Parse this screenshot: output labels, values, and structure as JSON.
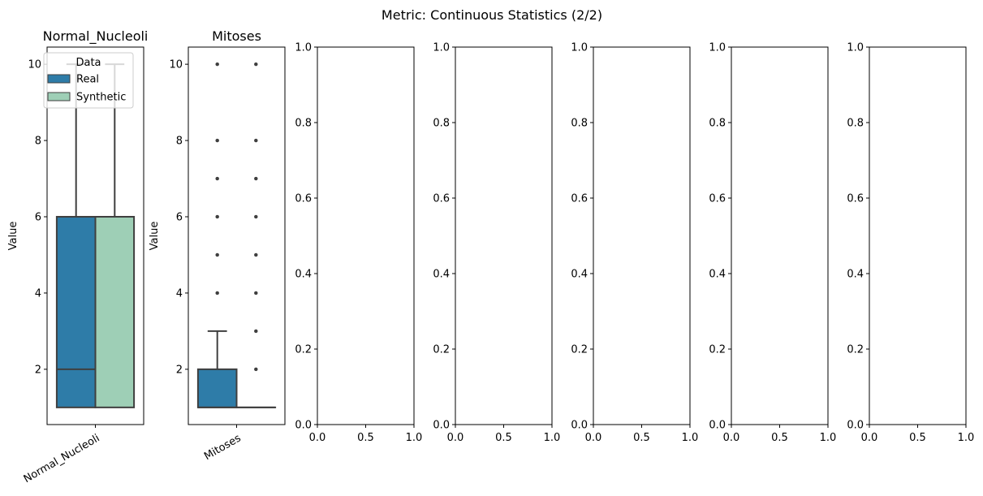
{
  "figure_title": "Metric: Continuous Statistics (2/2)",
  "colors": {
    "real": "#2e7ca8",
    "synthetic": "#9ecfb6",
    "box_edge": "#3f3f3f",
    "axis": "#000000"
  },
  "chart_data": [
    {
      "type": "box",
      "title": "Normal_Nucleoli",
      "ylabel": "Value",
      "xlabel": "",
      "category": "Normal_Nucleoli",
      "ylim": [
        0.55,
        10.45
      ],
      "yticks": [
        2,
        4,
        6,
        8,
        10
      ],
      "legend": {
        "title": "Data",
        "position": "upper-left",
        "entries": [
          "Real",
          "Synthetic"
        ]
      },
      "series": [
        {
          "name": "Real",
          "q1": 1,
          "median": 2,
          "q3": 6,
          "whisker_low": 1,
          "whisker_high": 10,
          "outliers": []
        },
        {
          "name": "Synthetic",
          "q1": 1,
          "median": 6,
          "q3": 6,
          "whisker_low": 1,
          "whisker_high": 10,
          "outliers": []
        }
      ]
    },
    {
      "type": "box",
      "title": "Mitoses",
      "ylabel": "Value",
      "xlabel": "",
      "category": "Mitoses",
      "ylim": [
        0.55,
        10.45
      ],
      "yticks": [
        2,
        4,
        6,
        8,
        10
      ],
      "series": [
        {
          "name": "Real",
          "q1": 1,
          "median": 1,
          "q3": 2,
          "whisker_low": 1,
          "whisker_high": 3,
          "outliers": [
            4,
            5,
            6,
            7,
            8,
            10
          ]
        },
        {
          "name": "Synthetic",
          "q1": 1,
          "median": 1,
          "q3": 1,
          "whisker_low": 1,
          "whisker_high": 1,
          "outliers": [
            2,
            3,
            4,
            5,
            6,
            7,
            8,
            10
          ]
        }
      ]
    },
    {
      "type": "empty",
      "xlim": [
        0,
        1
      ],
      "ylim": [
        0,
        1
      ],
      "xticks": [
        "0.0",
        "0.5",
        "1.0"
      ],
      "yticks": [
        "0.0",
        "0.2",
        "0.4",
        "0.6",
        "0.8",
        "1.0"
      ]
    },
    {
      "type": "empty",
      "xlim": [
        0,
        1
      ],
      "ylim": [
        0,
        1
      ],
      "xticks": [
        "0.0",
        "0.5",
        "1.0"
      ],
      "yticks": [
        "0.0",
        "0.2",
        "0.4",
        "0.6",
        "0.8",
        "1.0"
      ]
    },
    {
      "type": "empty",
      "xlim": [
        0,
        1
      ],
      "ylim": [
        0,
        1
      ],
      "xticks": [
        "0.0",
        "0.5",
        "1.0"
      ],
      "yticks": [
        "0.0",
        "0.2",
        "0.4",
        "0.6",
        "0.8",
        "1.0"
      ]
    },
    {
      "type": "empty",
      "xlim": [
        0,
        1
      ],
      "ylim": [
        0,
        1
      ],
      "xticks": [
        "0.0",
        "0.5",
        "1.0"
      ],
      "yticks": [
        "0.0",
        "0.2",
        "0.4",
        "0.6",
        "0.8",
        "1.0"
      ]
    },
    {
      "type": "empty",
      "xlim": [
        0,
        1
      ],
      "ylim": [
        0,
        1
      ],
      "xticks": [
        "0.0",
        "0.5",
        "1.0"
      ],
      "yticks": [
        "0.0",
        "0.2",
        "0.4",
        "0.6",
        "0.8",
        "1.0"
      ]
    }
  ]
}
